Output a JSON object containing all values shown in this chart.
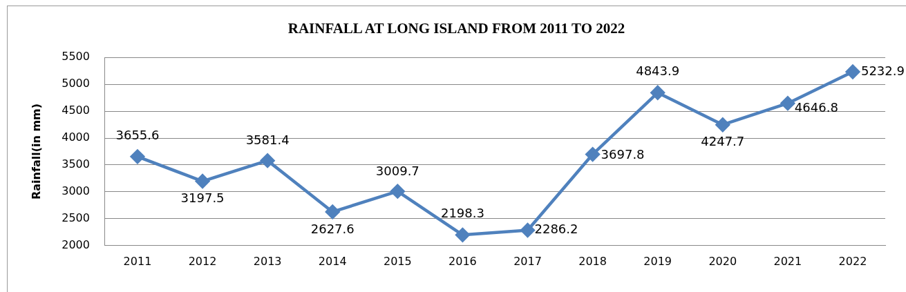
{
  "chart_data": {
    "type": "line",
    "title": "RAINFALL AT LONG ISLAND FROM 2011 TO 2022",
    "ylabel": "Rainfall(in mm)",
    "categories": [
      "2011",
      "2012",
      "2013",
      "2014",
      "2015",
      "2016",
      "2017",
      "2018",
      "2019",
      "2020",
      "2021",
      "2022"
    ],
    "series": [
      {
        "color": "#4f81bd",
        "values": [
          3655.6,
          3197.5,
          3581.4,
          2627.6,
          3009.7,
          2198.3,
          2286.2,
          3697.8,
          4843.9,
          4247.7,
          4646.8,
          5232.9
        ]
      }
    ],
    "ylim": [
      2000,
      5500
    ],
    "yticks": [
      2000,
      2500,
      3000,
      3500,
      4000,
      4500,
      5000,
      5500
    ],
    "grid": "y",
    "legend": false,
    "marker": "diamond",
    "line_style": "solid",
    "data_labels": true
  }
}
